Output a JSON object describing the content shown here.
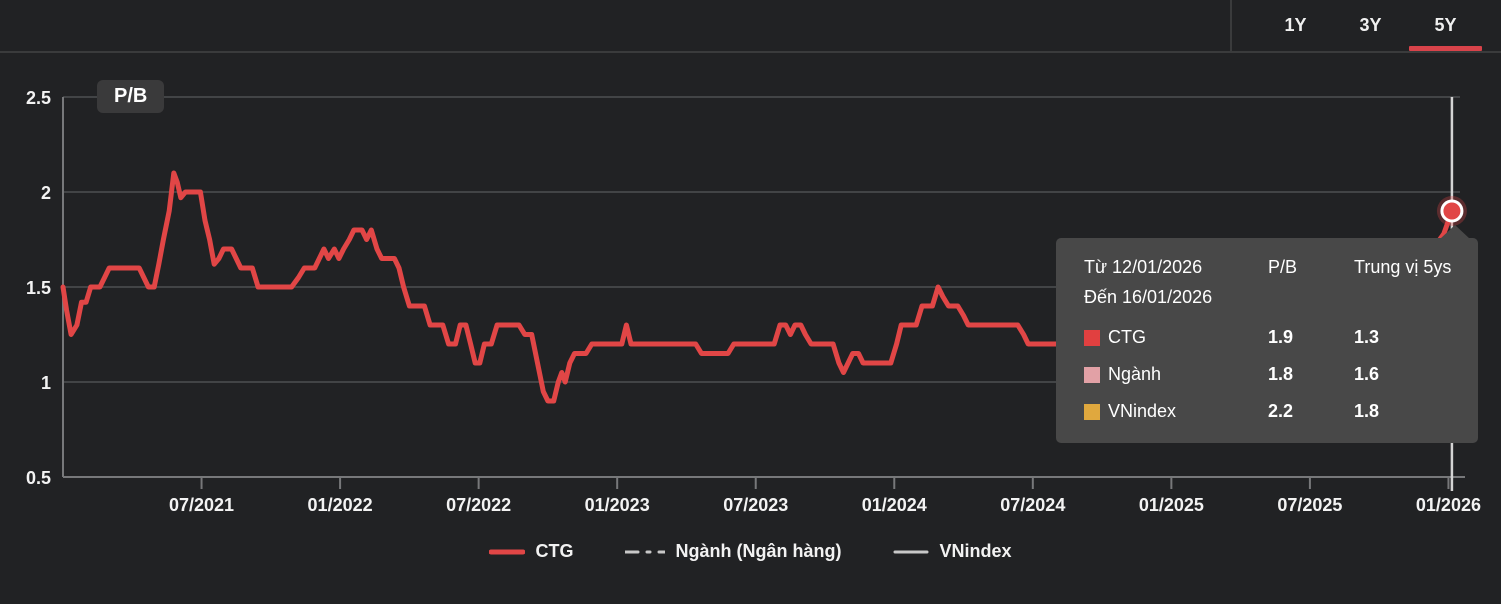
{
  "tabs": {
    "items": [
      {
        "label": "1Y",
        "active": false
      },
      {
        "label": "3Y",
        "active": false
      },
      {
        "label": "5Y",
        "active": true
      }
    ]
  },
  "chart_badge": "P/B",
  "colors": {
    "accent_red": "#e14646",
    "tab_underline": "#d8434a",
    "background": "#212224",
    "tooltip_bg": "#484848",
    "nganh_pink": "#e2a1a6",
    "vnindex_yellow": "#e0a83e",
    "legend_gray": "#c8c8c8"
  },
  "tooltip": {
    "from_label": "Từ 12/01/2026",
    "to_label": "Đến 16/01/2026",
    "col_pb": "P/B",
    "col_median": "Trung vị 5ys",
    "rows": [
      {
        "name": "CTG",
        "color": "#e14040",
        "pb": "1.9",
        "median": "1.3"
      },
      {
        "name": "Ngành",
        "color": "#e2a1a6",
        "pb": "1.8",
        "median": "1.6"
      },
      {
        "name": "VNindex",
        "color": "#e0a83e",
        "pb": "2.2",
        "median": "1.8"
      }
    ]
  },
  "legend": {
    "items": [
      {
        "label": "CTG",
        "style": "solid-red"
      },
      {
        "label": "Ngành (Ngân hàng)",
        "style": "dashdot-gray"
      },
      {
        "label": "VNindex",
        "style": "solid-gray"
      }
    ]
  },
  "chart_data": {
    "type": "line",
    "title": "P/B",
    "ylabel": "P/B",
    "ylim": [
      0.5,
      2.5
    ],
    "y_ticks": [
      0.5,
      1,
      1.5,
      2,
      2.5
    ],
    "y_tick_labels": [
      "0.5",
      "1",
      "1.5",
      "2",
      "2.5"
    ],
    "x_unit": "months since 01/2021",
    "x_months_span": 60.5,
    "x_ticks": [
      {
        "m": 6,
        "label": "07/2021"
      },
      {
        "m": 12,
        "label": "01/2022"
      },
      {
        "m": 18,
        "label": "07/2022"
      },
      {
        "m": 24,
        "label": "01/2023"
      },
      {
        "m": 30,
        "label": "07/2023"
      },
      {
        "m": 36,
        "label": "01/2024"
      },
      {
        "m": 42,
        "label": "07/2024"
      },
      {
        "m": 48,
        "label": "01/2025"
      },
      {
        "m": 54,
        "label": "07/2025"
      },
      {
        "m": 60,
        "label": "01/2026"
      }
    ],
    "grid": "horizontal-only",
    "legend_position": "bottom-center",
    "hidden_series_note": "Ngành and VNindex lines are toggled off; only latest values shown in tooltip",
    "crosshair": {
      "month": 60.15
    },
    "marker": {
      "month": 60.15,
      "value": 1.9
    },
    "series": [
      {
        "name": "CTG",
        "color": "#e14646",
        "points": [
          [
            0,
            1.5
          ],
          [
            0.15,
            1.38
          ],
          [
            0.35,
            1.25
          ],
          [
            0.6,
            1.3
          ],
          [
            0.8,
            1.42
          ],
          [
            1.0,
            1.42
          ],
          [
            1.2,
            1.5
          ],
          [
            1.6,
            1.5
          ],
          [
            1.8,
            1.55
          ],
          [
            2.0,
            1.6
          ],
          [
            3.3,
            1.6
          ],
          [
            3.5,
            1.55
          ],
          [
            3.7,
            1.5
          ],
          [
            3.95,
            1.5
          ],
          [
            4.15,
            1.62
          ],
          [
            4.35,
            1.75
          ],
          [
            4.6,
            1.9
          ],
          [
            4.8,
            2.1
          ],
          [
            4.95,
            2.05
          ],
          [
            5.1,
            1.97
          ],
          [
            5.3,
            2.0
          ],
          [
            5.95,
            2.0
          ],
          [
            6.15,
            1.85
          ],
          [
            6.35,
            1.75
          ],
          [
            6.55,
            1.62
          ],
          [
            6.75,
            1.65
          ],
          [
            6.95,
            1.7
          ],
          [
            7.3,
            1.7
          ],
          [
            7.5,
            1.65
          ],
          [
            7.7,
            1.6
          ],
          [
            8.2,
            1.6
          ],
          [
            8.45,
            1.5
          ],
          [
            9.9,
            1.5
          ],
          [
            10.2,
            1.55
          ],
          [
            10.45,
            1.6
          ],
          [
            10.9,
            1.6
          ],
          [
            11.1,
            1.65
          ],
          [
            11.3,
            1.7
          ],
          [
            11.5,
            1.65
          ],
          [
            11.75,
            1.7
          ],
          [
            11.95,
            1.65
          ],
          [
            12.15,
            1.7
          ],
          [
            12.4,
            1.75
          ],
          [
            12.6,
            1.8
          ],
          [
            12.95,
            1.8
          ],
          [
            13.15,
            1.75
          ],
          [
            13.35,
            1.8
          ],
          [
            13.6,
            1.7
          ],
          [
            13.8,
            1.65
          ],
          [
            14.35,
            1.65
          ],
          [
            14.55,
            1.6
          ],
          [
            14.75,
            1.5
          ],
          [
            15.0,
            1.4
          ],
          [
            15.65,
            1.4
          ],
          [
            15.9,
            1.3
          ],
          [
            16.45,
            1.3
          ],
          [
            16.7,
            1.2
          ],
          [
            17.0,
            1.2
          ],
          [
            17.2,
            1.3
          ],
          [
            17.45,
            1.3
          ],
          [
            17.65,
            1.2
          ],
          [
            17.85,
            1.1
          ],
          [
            18.05,
            1.1
          ],
          [
            18.25,
            1.2
          ],
          [
            18.55,
            1.2
          ],
          [
            18.8,
            1.3
          ],
          [
            19.75,
            1.3
          ],
          [
            20.0,
            1.25
          ],
          [
            20.3,
            1.25
          ],
          [
            20.55,
            1.1
          ],
          [
            20.8,
            0.95
          ],
          [
            21.0,
            0.9
          ],
          [
            21.25,
            0.9
          ],
          [
            21.45,
            1.0
          ],
          [
            21.6,
            1.05
          ],
          [
            21.75,
            1.0
          ],
          [
            21.95,
            1.1
          ],
          [
            22.15,
            1.15
          ],
          [
            22.65,
            1.15
          ],
          [
            22.9,
            1.2
          ],
          [
            24.2,
            1.2
          ],
          [
            24.4,
            1.3
          ],
          [
            24.6,
            1.2
          ],
          [
            27.4,
            1.2
          ],
          [
            27.65,
            1.15
          ],
          [
            28.8,
            1.15
          ],
          [
            29.05,
            1.2
          ],
          [
            30.8,
            1.2
          ],
          [
            31.05,
            1.3
          ],
          [
            31.3,
            1.3
          ],
          [
            31.5,
            1.25
          ],
          [
            31.7,
            1.3
          ],
          [
            31.95,
            1.3
          ],
          [
            32.15,
            1.25
          ],
          [
            32.4,
            1.2
          ],
          [
            33.35,
            1.2
          ],
          [
            33.6,
            1.1
          ],
          [
            33.8,
            1.05
          ],
          [
            34.0,
            1.1
          ],
          [
            34.2,
            1.15
          ],
          [
            34.45,
            1.15
          ],
          [
            34.65,
            1.1
          ],
          [
            35.85,
            1.1
          ],
          [
            36.1,
            1.2
          ],
          [
            36.3,
            1.3
          ],
          [
            36.95,
            1.3
          ],
          [
            37.2,
            1.4
          ],
          [
            37.65,
            1.4
          ],
          [
            37.9,
            1.5
          ],
          [
            38.1,
            1.45
          ],
          [
            38.35,
            1.4
          ],
          [
            38.75,
            1.4
          ],
          [
            39.0,
            1.35
          ],
          [
            39.2,
            1.3
          ],
          [
            41.35,
            1.3
          ],
          [
            41.6,
            1.25
          ],
          [
            41.8,
            1.2
          ],
          [
            44.0,
            1.2
          ],
          [
            46.0,
            1.25
          ],
          [
            48.0,
            1.3
          ],
          [
            50.0,
            1.3
          ],
          [
            52.0,
            1.35
          ],
          [
            54.0,
            1.4
          ],
          [
            56.0,
            1.5
          ],
          [
            58.0,
            1.6
          ],
          [
            59.2,
            1.68
          ],
          [
            59.8,
            1.78
          ],
          [
            60.15,
            1.9
          ]
        ],
        "latest": {
          "date_range": "12/01/2026 - 16/01/2026",
          "pb": 1.9,
          "median_5y": 1.3
        }
      }
    ]
  }
}
